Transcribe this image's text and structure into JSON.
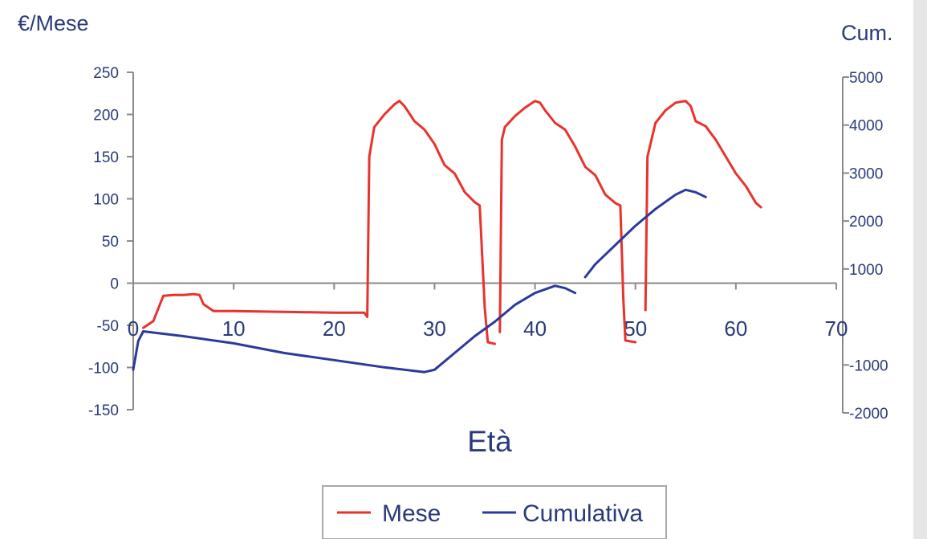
{
  "chart_data": {
    "type": "line",
    "title": "",
    "xlabel": "Età",
    "ylabel_left": "€/Mese",
    "ylabel_right": "Cum.",
    "xlim": [
      0,
      70
    ],
    "ylim_left": [
      -150,
      250
    ],
    "ylim_right": [
      -2000,
      5000
    ],
    "x_ticks": [
      0,
      10,
      20,
      30,
      40,
      50,
      60,
      70
    ],
    "y_ticks_left": [
      250,
      200,
      150,
      100,
      50,
      0,
      -50,
      -100,
      -150
    ],
    "y_ticks_right": [
      5000,
      4000,
      3000,
      2000,
      1000,
      -1000,
      -2000
    ],
    "grid": false,
    "legend_position": "bottom",
    "series": [
      {
        "name": "Mese",
        "axis": "left",
        "color": "#e8322d",
        "segments": [
          [
            [
              1,
              -53
            ],
            [
              2,
              -45
            ],
            [
              3,
              -15
            ],
            [
              4,
              -14
            ],
            [
              5,
              -14
            ],
            [
              6,
              -13
            ],
            [
              6.6,
              -14
            ],
            [
              7,
              -25
            ],
            [
              8,
              -33
            ],
            [
              10,
              -33
            ],
            [
              15,
              -34
            ],
            [
              20,
              -35
            ],
            [
              23,
              -35
            ],
            [
              23.3,
              -40
            ],
            [
              23.5,
              150
            ],
            [
              24,
              185
            ],
            [
              25,
              200
            ],
            [
              26,
              212
            ],
            [
              26.5,
              216
            ],
            [
              27,
              210
            ],
            [
              28,
              192
            ],
            [
              29,
              182
            ],
            [
              30,
              165
            ],
            [
              31,
              140
            ],
            [
              32,
              130
            ],
            [
              33,
              108
            ],
            [
              34,
              96
            ],
            [
              34.5,
              92
            ],
            [
              35,
              -30
            ],
            [
              35.3,
              -70
            ],
            [
              36,
              -72
            ]
          ],
          [
            [
              36.5,
              -58
            ],
            [
              36.7,
              170
            ],
            [
              37,
              185
            ],
            [
              38,
              198
            ],
            [
              39,
              208
            ],
            [
              40,
              216
            ],
            [
              40.5,
              214
            ],
            [
              41,
              205
            ],
            [
              42,
              190
            ],
            [
              43,
              182
            ],
            [
              44,
              162
            ],
            [
              45,
              138
            ],
            [
              46,
              128
            ],
            [
              47,
              105
            ],
            [
              48,
              95
            ],
            [
              48.5,
              92
            ],
            [
              48.8,
              -20
            ],
            [
              49,
              -68
            ],
            [
              50,
              -70
            ]
          ],
          [
            [
              51,
              -32
            ],
            [
              51.2,
              150
            ],
            [
              52,
              190
            ],
            [
              53,
              205
            ],
            [
              54,
              214
            ],
            [
              55,
              216
            ],
            [
              55.5,
              210
            ],
            [
              56,
              192
            ],
            [
              57,
              186
            ],
            [
              58,
              170
            ],
            [
              59,
              150
            ],
            [
              60,
              130
            ],
            [
              61,
              115
            ],
            [
              62,
              95
            ],
            [
              62.5,
              90
            ]
          ]
        ]
      },
      {
        "name": "Cumulativa",
        "axis": "right",
        "color": "#2b3a9b",
        "segments": [
          [
            [
              0,
              -1100
            ],
            [
              0.5,
              -500
            ],
            [
              1,
              -300
            ],
            [
              5,
              -400
            ],
            [
              10,
              -550
            ],
            [
              15,
              -750
            ],
            [
              20,
              -900
            ],
            [
              25,
              -1050
            ],
            [
              29,
              -1150
            ],
            [
              30,
              -1100
            ],
            [
              32,
              -750
            ],
            [
              34,
              -400
            ],
            [
              36,
              -100
            ],
            [
              38,
              250
            ],
            [
              40,
              500
            ],
            [
              42,
              650
            ],
            [
              43,
              600
            ],
            [
              44,
              500
            ]
          ],
          [
            [
              45,
              830
            ],
            [
              46,
              1100
            ],
            [
              48,
              1500
            ],
            [
              50,
              1900
            ],
            [
              52,
              2250
            ],
            [
              54,
              2550
            ],
            [
              55,
              2650
            ],
            [
              56,
              2600
            ],
            [
              57,
              2500
            ]
          ]
        ]
      }
    ]
  }
}
